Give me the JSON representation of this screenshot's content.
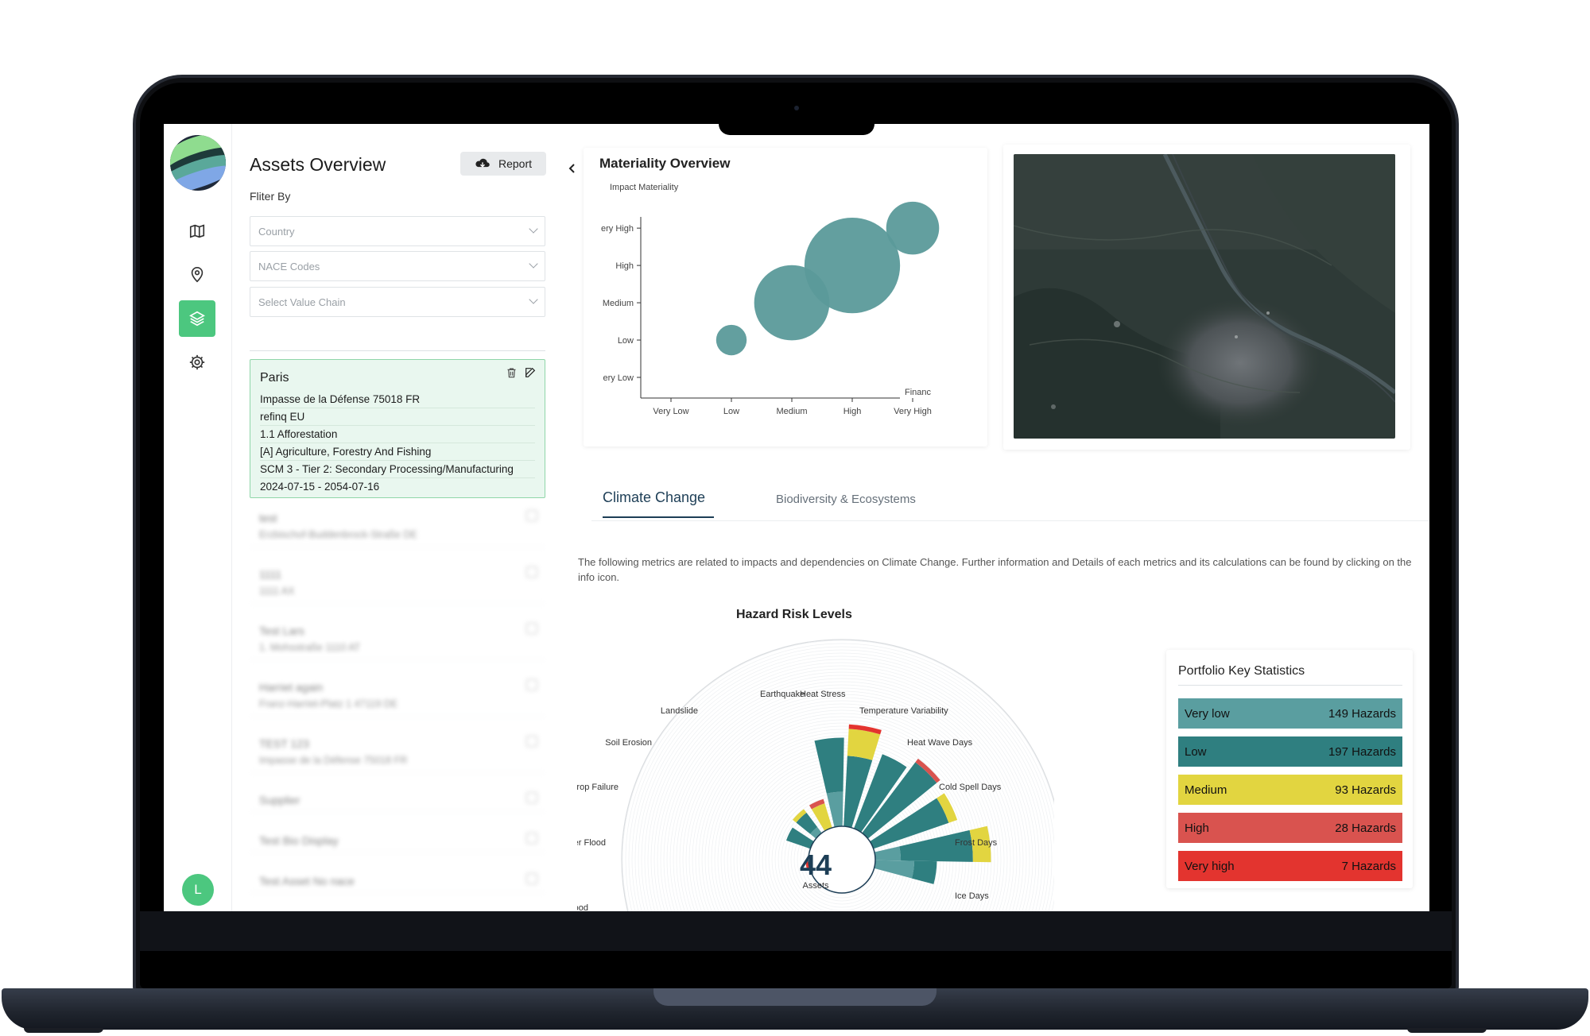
{
  "sidebar": {
    "logo": "company-logo",
    "items": [
      {
        "icon": "map-icon",
        "active": false
      },
      {
        "icon": "location-pin-icon",
        "active": false
      },
      {
        "icon": "layers-icon",
        "active": true
      },
      {
        "icon": "gear-icon",
        "active": false
      }
    ],
    "avatar_letter": "L"
  },
  "assets": {
    "title": "Assets Overview",
    "report_label": "Report",
    "filter_label": "Fliter By",
    "filters": {
      "country_placeholder": "Country",
      "nace_placeholder": "NACE Codes",
      "value_chain_placeholder": "Select Value Chain"
    },
    "selected": {
      "name": "Paris",
      "address": "Impasse de la Défense 75018 FR",
      "owner": "refinq EU",
      "activity": "1.1 Afforestation",
      "sector": "[A] Agriculture, Forestry And Fishing",
      "scope": "SCM 3 - Tier 2: Secondary Processing/Manufacturing",
      "period": "2024-07-15 - 2054-07-16"
    },
    "list": [
      {
        "name": "test",
        "address": "Erzbischof-Buddenbrock-Straße DE"
      },
      {
        "name": "1111",
        "address": "1111 AX"
      },
      {
        "name": "Test Lars",
        "address": "1. Mohsstraße 1110 AT"
      },
      {
        "name": "Harriet again",
        "address": "Franz-Harriet-Platz 1 47119 DE"
      },
      {
        "name": "TEST 123",
        "address": "Impasse de la Défense 75018 FR"
      },
      {
        "name": "Supplier",
        "address": ""
      },
      {
        "name": "Test Bio Display",
        "address": ""
      },
      {
        "name": "Test Asset No nace",
        "address": ""
      }
    ]
  },
  "materiality": {
    "title": "Materiality Overview",
    "chart_data": {
      "type": "scatter",
      "ylabel": "Impact Materiality",
      "xlabel": "Financ",
      "x_categories": [
        "Very Low",
        "Low",
        "Medium",
        "High",
        "Very High"
      ],
      "y_categories": [
        "ery Low",
        "Low",
        "Medium",
        "High",
        "ery High"
      ],
      "points": [
        {
          "x": "Low",
          "y": "Low",
          "size": 15
        },
        {
          "x": "Medium",
          "y": "Medium",
          "size": 37
        },
        {
          "x": "High",
          "y": "High",
          "size": 47
        },
        {
          "x": "Very High",
          "y": "Very High",
          "size": 26
        }
      ],
      "color": "#5b9a9a"
    }
  },
  "map": {
    "label": "satellite-map"
  },
  "tabs": [
    {
      "label": "Climate Change",
      "active": true
    },
    {
      "label": "Biodiversity & Ecosystems",
      "active": false
    }
  ],
  "description": "The following metrics are related to impacts and dependencies on Climate Change. Further information and Details of each metrics and its calculations can be found by clicking on the info icon.",
  "hazard": {
    "title": "Hazard Risk Levels",
    "center_value": "44",
    "center_label": "Assets",
    "chart_data": {
      "type": "radial-bar",
      "categories": [
        "Coastal Flood",
        "River Flood",
        "Crop Failure",
        "Soil Erosion",
        "Landslide",
        "Earthquake",
        "Heat Stress",
        "Temperature Variability",
        "Heat Wave Days",
        "Cold Spell Days",
        "Frost Days",
        "Ice Days"
      ],
      "series": [
        {
          "name": "Very low",
          "values": [
            0,
            0,
            0,
            2,
            0,
            8,
            0,
            0,
            0,
            0,
            6,
            9
          ],
          "color": "#5a9ea0"
        },
        {
          "name": "Low",
          "values": [
            0,
            0,
            6,
            4,
            0,
            12,
            16,
            18,
            20,
            18,
            16,
            5
          ],
          "color": "#2f7f80"
        },
        {
          "name": "Medium",
          "values": [
            0,
            0,
            0,
            1,
            6,
            0,
            6,
            0,
            0,
            2,
            4,
            0
          ],
          "color": "#e2d540"
        },
        {
          "name": "High",
          "values": [
            0,
            0,
            0,
            0,
            1,
            0,
            0,
            0,
            1,
            0,
            0,
            0
          ],
          "color": "#d9534f"
        },
        {
          "name": "Very high",
          "values": [
            0,
            1,
            0,
            0,
            0,
            0,
            1,
            0,
            0,
            0,
            0,
            0
          ],
          "color": "#e3342f"
        }
      ]
    }
  },
  "stats": {
    "title": "Portfolio Key Statistics",
    "rows": [
      {
        "label": "Very low",
        "value": "149 Hazards",
        "color": "#5a9ea0",
        "text": "#111"
      },
      {
        "label": "Low",
        "value": "197 Hazards",
        "color": "#2f7f80",
        "text": "#111"
      },
      {
        "label": "Medium",
        "value": "93 Hazards",
        "color": "#e2d540",
        "text": "#111"
      },
      {
        "label": "High",
        "value": "28 Hazards",
        "color": "#d9534f",
        "text": "#111"
      },
      {
        "label": "Very high",
        "value": "7 Hazards",
        "color": "#e3342f",
        "text": "#111"
      }
    ]
  }
}
